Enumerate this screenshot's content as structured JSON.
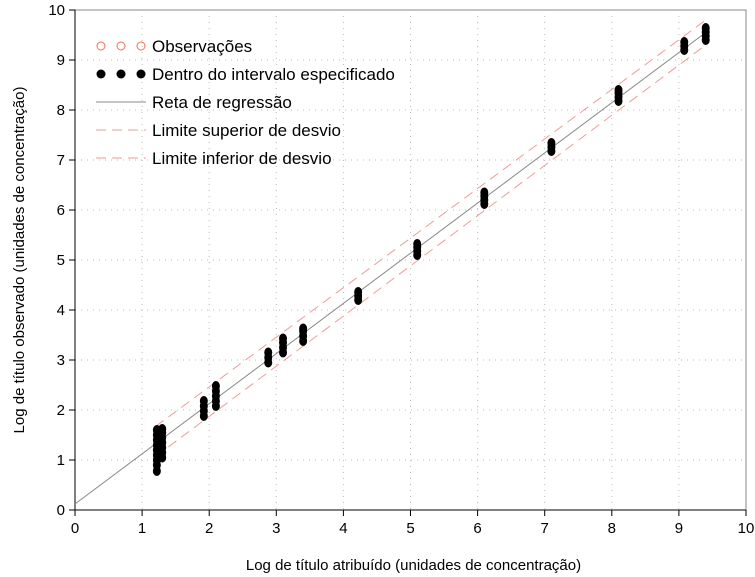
{
  "chart_data": {
    "type": "scatter",
    "xlabel": "Log de título atribuído (unidades de concentração)",
    "ylabel": "Log de título observado (unidades de concentração)",
    "xlim": [
      0,
      10
    ],
    "ylim": [
      0,
      10
    ],
    "x_ticks": [
      "0",
      "1",
      "2",
      "3",
      "4",
      "5",
      "6",
      "7",
      "8",
      "9",
      "10"
    ],
    "y_ticks": [
      "0",
      "1",
      "2",
      "3",
      "4",
      "5",
      "6",
      "7",
      "8",
      "9",
      "10"
    ],
    "grid": true,
    "legend_position": "top-left",
    "legend": [
      {
        "label": "Observações",
        "marker": "open-circle",
        "color": "#ef6f55"
      },
      {
        "label": "Dentro do intervalo especificado",
        "marker": "filled-circle",
        "color": "#000000"
      },
      {
        "label": "Reta de regressão",
        "marker": "solid-line",
        "color": "#888888"
      },
      {
        "label": "Limite superior de desvio",
        "marker": "dashed-line",
        "color": "#f29a9a"
      },
      {
        "label": "Limite inferior de desvio",
        "marker": "dashed-line",
        "color": "#f29a9a"
      }
    ],
    "regression_line": {
      "x": [
        0,
        9.4
      ],
      "y": [
        0.12,
        9.55
      ]
    },
    "upper_limit_line": {
      "x": [
        1.2,
        9.4
      ],
      "y": [
        1.67,
        9.8
      ]
    },
    "lower_limit_line": {
      "x": [
        1.2,
        9.4
      ],
      "y": [
        1.07,
        9.3
      ]
    },
    "series": [
      {
        "name": "Dentro do intervalo especificado",
        "points": [
          [
            1.22,
            0.78
          ],
          [
            1.22,
            0.9
          ],
          [
            1.22,
            1.0
          ],
          [
            1.22,
            1.1
          ],
          [
            1.22,
            1.2
          ],
          [
            1.22,
            1.3
          ],
          [
            1.22,
            1.4
          ],
          [
            1.22,
            1.5
          ],
          [
            1.22,
            1.6
          ],
          [
            1.3,
            1.05
          ],
          [
            1.3,
            1.15
          ],
          [
            1.3,
            1.25
          ],
          [
            1.3,
            1.35
          ],
          [
            1.3,
            1.45
          ],
          [
            1.3,
            1.55
          ],
          [
            1.3,
            1.62
          ],
          [
            1.92,
            1.88
          ],
          [
            1.92,
            1.98
          ],
          [
            1.92,
            2.08
          ],
          [
            1.92,
            2.18
          ],
          [
            2.1,
            2.08
          ],
          [
            2.1,
            2.18
          ],
          [
            2.1,
            2.28
          ],
          [
            2.1,
            2.38
          ],
          [
            2.1,
            2.48
          ],
          [
            2.88,
            2.95
          ],
          [
            2.88,
            3.05
          ],
          [
            2.88,
            3.15
          ],
          [
            3.1,
            3.15
          ],
          [
            3.1,
            3.25
          ],
          [
            3.1,
            3.35
          ],
          [
            3.1,
            3.43
          ],
          [
            3.4,
            3.38
          ],
          [
            3.4,
            3.48
          ],
          [
            3.4,
            3.58
          ],
          [
            3.4,
            3.63
          ],
          [
            4.22,
            4.2
          ],
          [
            4.22,
            4.28
          ],
          [
            4.22,
            4.36
          ],
          [
            5.1,
            5.1
          ],
          [
            5.1,
            5.18
          ],
          [
            5.1,
            5.26
          ],
          [
            5.1,
            5.32
          ],
          [
            6.1,
            6.12
          ],
          [
            6.1,
            6.2
          ],
          [
            6.1,
            6.28
          ],
          [
            6.1,
            6.35
          ],
          [
            7.1,
            7.18
          ],
          [
            7.1,
            7.26
          ],
          [
            7.1,
            7.34
          ],
          [
            8.1,
            8.18
          ],
          [
            8.1,
            8.26
          ],
          [
            8.1,
            8.34
          ],
          [
            8.1,
            8.4
          ],
          [
            9.08,
            9.2
          ],
          [
            9.08,
            9.28
          ],
          [
            9.08,
            9.36
          ],
          [
            9.4,
            9.4
          ],
          [
            9.4,
            9.48
          ],
          [
            9.4,
            9.56
          ],
          [
            9.4,
            9.64
          ]
        ]
      }
    ]
  }
}
